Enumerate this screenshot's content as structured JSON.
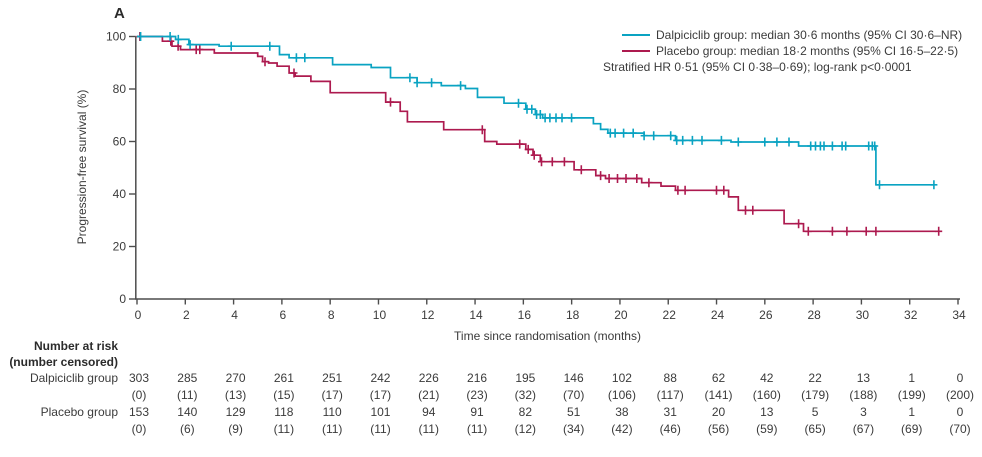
{
  "figure": {
    "panel_label": "A",
    "background_color": "#ffffff",
    "text_color": "#3b3b3b",
    "axis_color": "#4d4d4d"
  },
  "chart_data": {
    "type": "line",
    "subtype": "kaplan-meier-step-curves",
    "title": "",
    "xlabel": "Time since randomisation (months)",
    "ylabel": "Progression-free survival (%)",
    "xlim": [
      0,
      34
    ],
    "ylim": [
      0,
      100
    ],
    "xticks": [
      0,
      2,
      4,
      6,
      8,
      10,
      12,
      14,
      16,
      18,
      20,
      22,
      24,
      26,
      28,
      30,
      32,
      34
    ],
    "yticks": [
      0,
      20,
      40,
      60,
      80,
      100
    ],
    "grid": false,
    "legend_position": "top-right",
    "annotation": "Stratified HR 0·51 (95% CI 0·38–0·69); log-rank p<0·0001",
    "series": [
      {
        "name": "Dalpiciclib group",
        "legend_label": "Dalpiciclib group: median 30·6 months (95% CI 30·6–NR)",
        "color": "#0aa3c2",
        "median_months": "30·6",
        "ci": "30·6–NR",
        "steps": [
          [
            0,
            100
          ],
          [
            1.6,
            98.9
          ],
          [
            2.15,
            96.9
          ],
          [
            3.4,
            96.3
          ],
          [
            5.9,
            93.1
          ],
          [
            6.3,
            91.9
          ],
          [
            8.1,
            89.3
          ],
          [
            9.7,
            88.2
          ],
          [
            10.5,
            84.3
          ],
          [
            11.6,
            82.4
          ],
          [
            12.6,
            81.3
          ],
          [
            13.6,
            80.2
          ],
          [
            14.1,
            76.8
          ],
          [
            15.2,
            74.6
          ],
          [
            16.1,
            72.3
          ],
          [
            16.5,
            70.3
          ],
          [
            16.8,
            69.0
          ],
          [
            18.9,
            66.8
          ],
          [
            19.2,
            64.6
          ],
          [
            19.5,
            63.2
          ],
          [
            21.0,
            62.2
          ],
          [
            22.3,
            60.4
          ],
          [
            24.6,
            59.8
          ],
          [
            27.4,
            58.3
          ],
          [
            30.6,
            43.5
          ],
          [
            33.0,
            43.5
          ]
        ],
        "censor_marks_months": [
          0.15,
          1.37,
          1.71,
          2.2,
          3.9,
          5.5,
          6.6,
          6.95,
          11.3,
          11.6,
          12.2,
          13.4,
          15.8,
          16.15,
          16.35,
          16.55,
          16.7,
          16.9,
          17.1,
          17.35,
          17.6,
          18.0,
          19.6,
          19.8,
          20.15,
          20.55,
          21.0,
          21.4,
          22.1,
          22.35,
          22.6,
          23.0,
          23.4,
          24.2,
          24.9,
          26.0,
          26.5,
          27.0,
          27.9,
          28.1,
          28.3,
          28.45,
          28.8,
          29.2,
          29.35,
          30.3,
          30.45,
          30.55,
          30.75,
          33.0
        ]
      },
      {
        "name": "Placebo group",
        "legend_label": "Placebo group: median 18·2 months (95% CI 16·5–22·5)",
        "color": "#ad1a4f",
        "median_months": "18·2",
        "ci": "16·5–22·5",
        "steps": [
          [
            0,
            100
          ],
          [
            1.05,
            98.2
          ],
          [
            1.45,
            96.3
          ],
          [
            1.8,
            95.0
          ],
          [
            3.2,
            93.7
          ],
          [
            5.0,
            92.4
          ],
          [
            5.2,
            90.4
          ],
          [
            5.45,
            89.9
          ],
          [
            5.8,
            88.7
          ],
          [
            6.3,
            86.1
          ],
          [
            6.55,
            84.9
          ],
          [
            7.2,
            82.9
          ],
          [
            8.0,
            78.6
          ],
          [
            10.3,
            75.0
          ],
          [
            10.9,
            71.5
          ],
          [
            11.2,
            67.5
          ],
          [
            12.7,
            64.5
          ],
          [
            14.4,
            60.0
          ],
          [
            14.9,
            59.0
          ],
          [
            16.1,
            57.0
          ],
          [
            16.4,
            54.8
          ],
          [
            16.7,
            52.3
          ],
          [
            18.1,
            49.2
          ],
          [
            19.0,
            47.0
          ],
          [
            19.4,
            45.9
          ],
          [
            20.9,
            44.3
          ],
          [
            21.7,
            43.0
          ],
          [
            22.3,
            41.4
          ],
          [
            24.5,
            38.9
          ],
          [
            24.9,
            33.8
          ],
          [
            26.8,
            28.7
          ],
          [
            27.6,
            25.8
          ],
          [
            33.1,
            25.8
          ]
        ],
        "censor_marks_months": [
          0.12,
          1.4,
          1.7,
          2.45,
          2.6,
          5.3,
          6.5,
          10.5,
          14.3,
          15.85,
          16.2,
          16.45,
          16.75,
          17.2,
          17.7,
          18.4,
          19.2,
          19.55,
          19.9,
          20.25,
          20.7,
          21.2,
          22.4,
          22.7,
          24.0,
          24.3,
          25.2,
          25.5,
          27.4,
          27.8,
          28.8,
          29.4,
          30.2,
          30.6,
          33.2
        ]
      }
    ]
  },
  "at_risk_table": {
    "header_line1": "Number at risk",
    "header_line2": "(number censored)",
    "months": [
      0,
      2,
      4,
      6,
      8,
      10,
      12,
      14,
      16,
      18,
      20,
      22,
      24,
      26,
      28,
      30,
      32,
      34
    ],
    "rows": [
      {
        "label": "Dalpiciclib group",
        "at_risk": [
          303,
          285,
          270,
          261,
          251,
          242,
          226,
          216,
          195,
          146,
          102,
          88,
          62,
          42,
          22,
          13,
          1,
          0
        ],
        "censored": [
          0,
          11,
          13,
          15,
          17,
          17,
          21,
          23,
          32,
          70,
          106,
          117,
          141,
          160,
          179,
          188,
          199,
          200
        ]
      },
      {
        "label": "Placebo group",
        "at_risk": [
          153,
          140,
          129,
          118,
          110,
          101,
          94,
          91,
          82,
          51,
          38,
          31,
          20,
          13,
          5,
          3,
          1,
          0
        ],
        "censored": [
          0,
          6,
          9,
          11,
          11,
          11,
          11,
          11,
          12,
          34,
          42,
          46,
          56,
          59,
          65,
          67,
          69,
          70
        ]
      }
    ]
  }
}
